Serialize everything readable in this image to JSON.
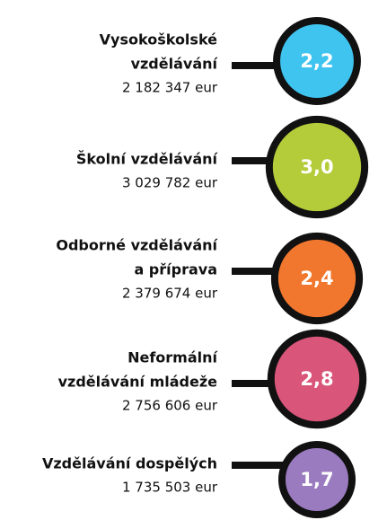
{
  "chart_data": {
    "type": "bubble",
    "categories": [
      [
        "Vysokoškolské",
        "vzdělávání"
      ],
      [
        "Školní vzdělávání"
      ],
      [
        "Odborné vzdělávání",
        "a příprava"
      ],
      [
        "Neformální",
        "vzdělávání mládeže"
      ],
      [
        "Vzdělávání dospělých"
      ]
    ],
    "details": [
      "2 182 347 eur",
      "3 029 782 eur",
      "2 379 674 eur",
      "2 756 606 eur",
      "1 735 503 eur"
    ],
    "values": [
      2.2,
      3.0,
      2.4,
      2.8,
      1.7
    ],
    "value_labels": [
      "2,2",
      "3,0",
      "2,4",
      "2,8",
      "1,7"
    ],
    "colors": [
      "#3fc3ef",
      "#b5cc3a",
      "#f2772e",
      "#d9567a",
      "#9b7bbf"
    ]
  }
}
